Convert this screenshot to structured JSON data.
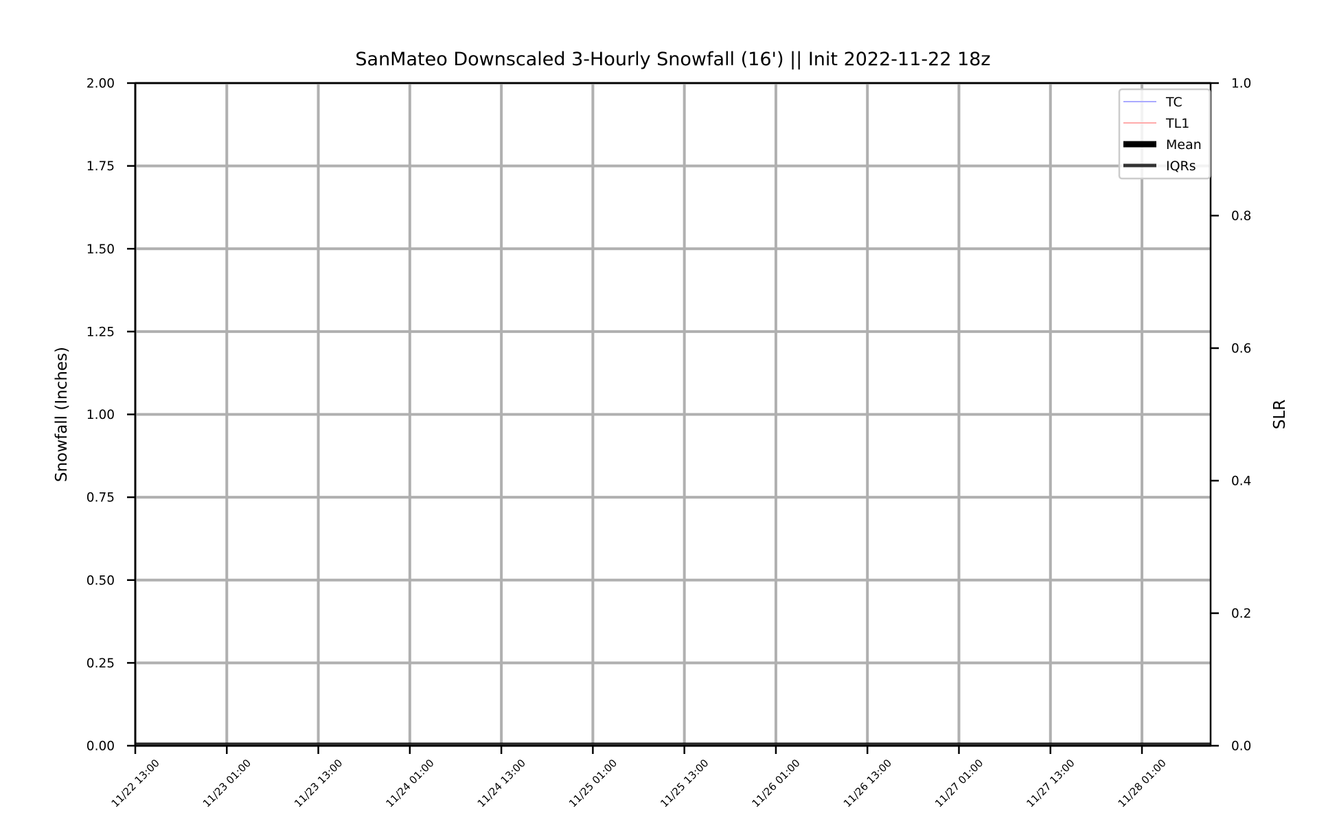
{
  "chart_data": {
    "type": "line",
    "title": "SanMateo Downscaled 3-Hourly Snowfall (16') || Init 2022-11-22 18z",
    "ylabel": "Snowfall (Inches)",
    "y2label": "SLR",
    "ylim": [
      0,
      2.0
    ],
    "y2lim": [
      0,
      1.0
    ],
    "yticks": [
      "0.00",
      "0.25",
      "0.50",
      "0.75",
      "1.00",
      "1.25",
      "1.50",
      "1.75",
      "2.00"
    ],
    "y2ticks": [
      "0.0",
      "0.2",
      "0.4",
      "0.6",
      "0.8",
      "1.0"
    ],
    "xlim": [
      "2022-11-22 13:00",
      "2022-11-28 10:00"
    ],
    "xticks": [
      {
        "t": "2022-11-22 13:00",
        "label": "11/22 13:00"
      },
      {
        "t": "2022-11-23 01:00",
        "label": "11/23 01:00"
      },
      {
        "t": "2022-11-23 13:00",
        "label": "11/23 13:00"
      },
      {
        "t": "2022-11-24 01:00",
        "label": "11/24 01:00"
      },
      {
        "t": "2022-11-24 13:00",
        "label": "11/24 13:00"
      },
      {
        "t": "2022-11-25 01:00",
        "label": "11/25 01:00"
      },
      {
        "t": "2022-11-25 13:00",
        "label": "11/25 13:00"
      },
      {
        "t": "2022-11-26 01:00",
        "label": "11/26 01:00"
      },
      {
        "t": "2022-11-26 13:00",
        "label": "11/26 13:00"
      },
      {
        "t": "2022-11-27 01:00",
        "label": "11/27 01:00"
      },
      {
        "t": "2022-11-27 13:00",
        "label": "11/27 13:00"
      },
      {
        "t": "2022-11-28 01:00",
        "label": "11/28 01:00"
      }
    ],
    "grid": true,
    "legend_position": "top-right",
    "series": [
      {
        "name": "TC",
        "color": "#aaaaff",
        "x": [
          "2022-11-22 13:00",
          "2022-11-28 10:00"
        ],
        "values": [
          0,
          0
        ]
      },
      {
        "name": "TL1",
        "color": "#ffaaaa",
        "x": [
          "2022-11-22 13:00",
          "2022-11-28 10:00"
        ],
        "values": [
          0,
          0
        ]
      },
      {
        "name": "Mean",
        "color": "#000000",
        "x": [
          "2022-11-22 13:00",
          "2022-11-28 10:00"
        ],
        "values": [
          0,
          0
        ]
      },
      {
        "name": "IQRs",
        "color": "#333333",
        "x": [
          "2022-11-22 13:00",
          "2022-11-28 10:00"
        ],
        "values": [
          0,
          0
        ]
      }
    ]
  }
}
